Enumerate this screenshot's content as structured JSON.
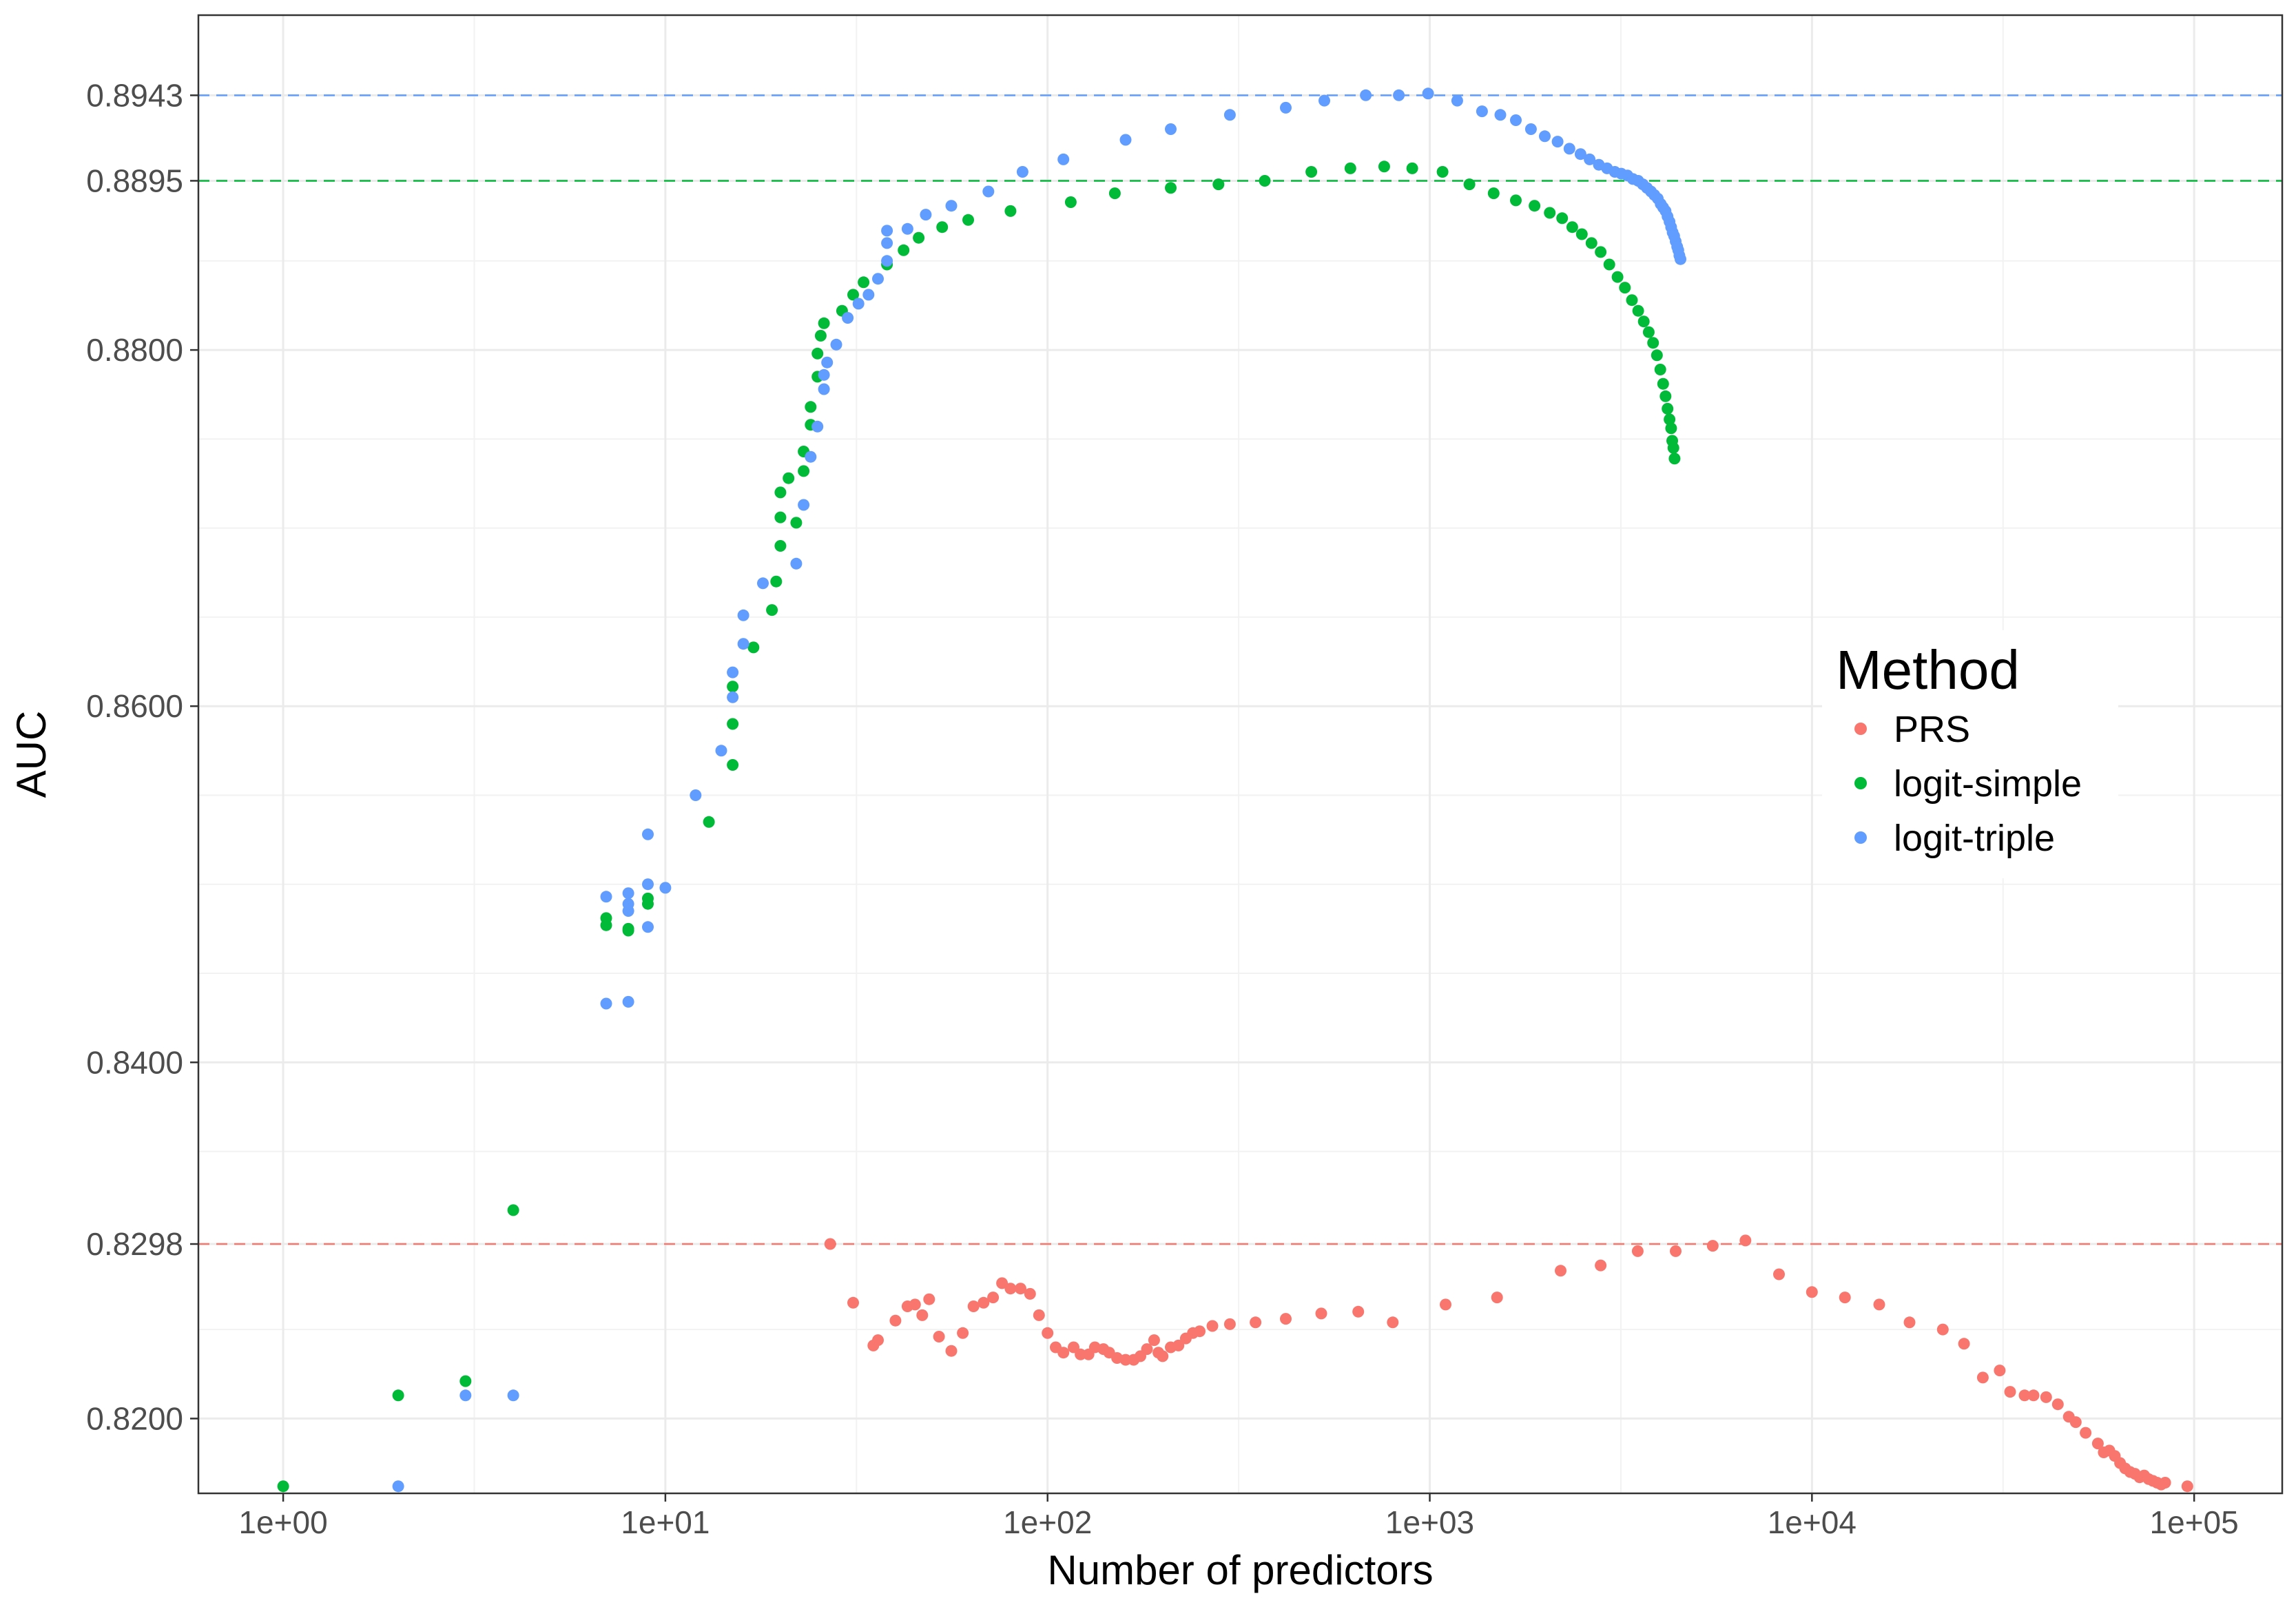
{
  "chart_data": {
    "type": "scatter",
    "title": "",
    "xlabel": "Number of predictors",
    "ylabel": "AUC",
    "x_scale": "log10",
    "x_range": [
      0.6,
      170000
    ],
    "y_range": [
      0.8158,
      0.8988
    ],
    "x_ticks": [
      1,
      10,
      100,
      1000,
      10000,
      100000
    ],
    "x_tick_labels": [
      "1e+00",
      "1e+01",
      "1e+02",
      "1e+03",
      "1e+04",
      "1e+05"
    ],
    "y_ticks": [
      0.82,
      0.8298,
      0.84,
      0.86,
      0.88,
      0.8895,
      0.8943
    ],
    "y_tick_labels": [
      "0.8200",
      "0.8298",
      "0.8400",
      "0.8600",
      "0.8800",
      "0.8895",
      "0.8943"
    ],
    "y_minor_ticks": [
      0.815,
      0.825,
      0.835,
      0.845,
      0.85,
      0.855,
      0.865,
      0.87,
      0.875,
      0.885
    ],
    "grid": true,
    "legend": {
      "title": "Method",
      "position": "right-inside"
    },
    "reference_lines": [
      {
        "series": "PRS",
        "y": 0.8298,
        "style": "dashed"
      },
      {
        "series": "logit-simple",
        "y": 0.8895,
        "style": "dashed"
      },
      {
        "series": "logit-triple",
        "y": 0.8943,
        "style": "dashed"
      }
    ],
    "series": [
      {
        "name": "PRS",
        "color": "#F8766D",
        "points": [
          [
            27,
            0.8298
          ],
          [
            31,
            0.8265
          ],
          [
            35,
            0.8241
          ],
          [
            36,
            0.8244
          ],
          [
            40,
            0.8255
          ],
          [
            43,
            0.8263
          ],
          [
            45,
            0.8264
          ],
          [
            47,
            0.8258
          ],
          [
            49,
            0.8267
          ],
          [
            52,
            0.8246
          ],
          [
            56,
            0.8238
          ],
          [
            60,
            0.8248
          ],
          [
            64,
            0.8263
          ],
          [
            68,
            0.8265
          ],
          [
            72,
            0.8268
          ],
          [
            76,
            0.8276
          ],
          [
            80,
            0.8273
          ],
          [
            85,
            0.8273
          ],
          [
            90,
            0.827
          ],
          [
            95,
            0.8258
          ],
          [
            100,
            0.8248
          ],
          [
            105,
            0.824
          ],
          [
            110,
            0.8237
          ],
          [
            117,
            0.824
          ],
          [
            122,
            0.8236
          ],
          [
            128,
            0.8236
          ],
          [
            133,
            0.824
          ],
          [
            140,
            0.8239
          ],
          [
            145,
            0.8237
          ],
          [
            152,
            0.8234
          ],
          [
            160,
            0.8233
          ],
          [
            168,
            0.8233
          ],
          [
            175,
            0.8235
          ],
          [
            182,
            0.8239
          ],
          [
            190,
            0.8244
          ],
          [
            195,
            0.8237
          ],
          [
            200,
            0.8235
          ],
          [
            210,
            0.824
          ],
          [
            220,
            0.8241
          ],
          [
            230,
            0.8245
          ],
          [
            240,
            0.8248
          ],
          [
            250,
            0.8249
          ],
          [
            270,
            0.8252
          ],
          [
            300,
            0.8253
          ],
          [
            350,
            0.8254
          ],
          [
            420,
            0.8256
          ],
          [
            520,
            0.8259
          ],
          [
            650,
            0.826
          ],
          [
            800,
            0.8254
          ],
          [
            1100,
            0.8264
          ],
          [
            1500,
            0.8268
          ],
          [
            2200,
            0.8283
          ],
          [
            2800,
            0.8286
          ],
          [
            3500,
            0.8294
          ],
          [
            4400,
            0.8294
          ],
          [
            5500,
            0.8297
          ],
          [
            6700,
            0.83
          ],
          [
            8200,
            0.8281
          ],
          [
            10000,
            0.8271
          ],
          [
            12200,
            0.8268
          ],
          [
            15000,
            0.8264
          ],
          [
            18000,
            0.8254
          ],
          [
            22000,
            0.825
          ],
          [
            25000,
            0.8242
          ],
          [
            28000,
            0.8223
          ],
          [
            31000,
            0.8227
          ],
          [
            33000,
            0.8215
          ],
          [
            36000,
            0.8213
          ],
          [
            38000,
            0.8213
          ],
          [
            41000,
            0.8212
          ],
          [
            44000,
            0.8208
          ],
          [
            47000,
            0.8201
          ],
          [
            49000,
            0.8198
          ],
          [
            52000,
            0.8192
          ],
          [
            56000,
            0.8186
          ],
          [
            58000,
            0.8181
          ],
          [
            60000,
            0.8182
          ],
          [
            62000,
            0.8179
          ],
          [
            64000,
            0.8175
          ],
          [
            66000,
            0.8172
          ],
          [
            68000,
            0.817
          ],
          [
            70000,
            0.8169
          ],
          [
            72000,
            0.8167
          ],
          [
            74000,
            0.8168
          ],
          [
            76000,
            0.8166
          ],
          [
            78000,
            0.8165
          ],
          [
            80000,
            0.8164
          ],
          [
            82000,
            0.8163
          ],
          [
            84000,
            0.8164
          ],
          [
            96000,
            0.8162
          ]
        ]
      },
      {
        "name": "logit-simple",
        "color": "#00BA38",
        "points": [
          [
            1,
            0.8162
          ],
          [
            2,
            0.8213
          ],
          [
            3,
            0.8221
          ],
          [
            4,
            0.8317
          ],
          [
            7,
            0.8477
          ],
          [
            7,
            0.8481
          ],
          [
            8,
            0.8474
          ],
          [
            8,
            0.8475
          ],
          [
            9,
            0.8489
          ],
          [
            9,
            0.8492
          ],
          [
            13,
            0.8535
          ],
          [
            15,
            0.8567
          ],
          [
            15,
            0.859
          ],
          [
            15,
            0.8611
          ],
          [
            17,
            0.8633
          ],
          [
            19,
            0.8654
          ],
          [
            19.5,
            0.867
          ],
          [
            20,
            0.869
          ],
          [
            20,
            0.8706
          ],
          [
            20,
            0.872
          ],
          [
            21,
            0.8728
          ],
          [
            22,
            0.8703
          ],
          [
            23,
            0.8732
          ],
          [
            23,
            0.8743
          ],
          [
            24,
            0.8758
          ],
          [
            24,
            0.8768
          ],
          [
            25,
            0.8785
          ],
          [
            25,
            0.8798
          ],
          [
            25.5,
            0.8808
          ],
          [
            26,
            0.8815
          ],
          [
            29,
            0.8822
          ],
          [
            31,
            0.8831
          ],
          [
            33,
            0.8838
          ],
          [
            38,
            0.8848
          ],
          [
            42,
            0.8856
          ],
          [
            46,
            0.8863
          ],
          [
            53,
            0.8869
          ],
          [
            62,
            0.8873
          ],
          [
            80,
            0.8878
          ],
          [
            115,
            0.8883
          ],
          [
            150,
            0.8888
          ],
          [
            210,
            0.8891
          ],
          [
            280,
            0.8893
          ],
          [
            370,
            0.8895
          ],
          [
            490,
            0.89
          ],
          [
            620,
            0.8902
          ],
          [
            760,
            0.8903
          ],
          [
            900,
            0.8902
          ],
          [
            1080,
            0.89
          ],
          [
            1270,
            0.8893
          ],
          [
            1470,
            0.8888
          ],
          [
            1680,
            0.8884
          ],
          [
            1880,
            0.8881
          ],
          [
            2060,
            0.8877
          ],
          [
            2220,
            0.8874
          ],
          [
            2360,
            0.8869
          ],
          [
            2500,
            0.8865
          ],
          [
            2650,
            0.886
          ],
          [
            2800,
            0.8855
          ],
          [
            2950,
            0.8848
          ],
          [
            3100,
            0.8841
          ],
          [
            3240,
            0.8835
          ],
          [
            3380,
            0.8828
          ],
          [
            3510,
            0.8822
          ],
          [
            3630,
            0.8816
          ],
          [
            3740,
            0.881
          ],
          [
            3840,
            0.8804
          ],
          [
            3930,
            0.8797
          ],
          [
            4010,
            0.8789
          ],
          [
            4080,
            0.8781
          ],
          [
            4140,
            0.8774
          ],
          [
            4190,
            0.8767
          ],
          [
            4240,
            0.8761
          ],
          [
            4280,
            0.8756
          ],
          [
            4310,
            0.8749
          ],
          [
            4340,
            0.8745
          ],
          [
            4370,
            0.8739
          ]
        ]
      },
      {
        "name": "logit-triple",
        "color": "#619CFF",
        "points": [
          [
            2,
            0.8162
          ],
          [
            3,
            0.8213
          ],
          [
            4,
            0.8213
          ],
          [
            7,
            0.8433
          ],
          [
            7,
            0.8493
          ],
          [
            8,
            0.8434
          ],
          [
            8,
            0.8485
          ],
          [
            8,
            0.8489
          ],
          [
            8,
            0.8495
          ],
          [
            9,
            0.8476
          ],
          [
            9,
            0.85
          ],
          [
            9,
            0.8528
          ],
          [
            10,
            0.8498
          ],
          [
            12,
            0.855
          ],
          [
            14,
            0.8575
          ],
          [
            15,
            0.8605
          ],
          [
            15,
            0.8619
          ],
          [
            16,
            0.8635
          ],
          [
            16,
            0.8651
          ],
          [
            18,
            0.8669
          ],
          [
            22,
            0.868
          ],
          [
            23,
            0.8713
          ],
          [
            24,
            0.874
          ],
          [
            25,
            0.8757
          ],
          [
            26,
            0.8778
          ],
          [
            26,
            0.8786
          ],
          [
            26.5,
            0.8793
          ],
          [
            28,
            0.8803
          ],
          [
            30,
            0.8818
          ],
          [
            32,
            0.8826
          ],
          [
            34,
            0.8831
          ],
          [
            36,
            0.884
          ],
          [
            38,
            0.885
          ],
          [
            38,
            0.886
          ],
          [
            38,
            0.8867
          ],
          [
            43,
            0.8868
          ],
          [
            48,
            0.8876
          ],
          [
            56,
            0.8881
          ],
          [
            70,
            0.8889
          ],
          [
            86,
            0.89
          ],
          [
            110,
            0.8907
          ],
          [
            160,
            0.8918
          ],
          [
            210,
            0.8924
          ],
          [
            300,
            0.8932
          ],
          [
            420,
            0.8936
          ],
          [
            530,
            0.894
          ],
          [
            680,
            0.8943
          ],
          [
            830,
            0.8943
          ],
          [
            990,
            0.8944
          ],
          [
            1180,
            0.894
          ],
          [
            1370,
            0.8934
          ],
          [
            1530,
            0.8932
          ],
          [
            1680,
            0.8929
          ],
          [
            1840,
            0.8924
          ],
          [
            2000,
            0.892
          ],
          [
            2160,
            0.8917
          ],
          [
            2320,
            0.8913
          ],
          [
            2480,
            0.891
          ],
          [
            2620,
            0.8907
          ],
          [
            2770,
            0.8904
          ],
          [
            2910,
            0.8902
          ],
          [
            3050,
            0.89
          ],
          [
            3170,
            0.8899
          ],
          [
            3290,
            0.8898
          ],
          [
            3400,
            0.8896
          ],
          [
            3510,
            0.8895
          ],
          [
            3610,
            0.8893
          ],
          [
            3700,
            0.8891
          ],
          [
            3790,
            0.8889
          ],
          [
            3870,
            0.8887
          ],
          [
            3950,
            0.8885
          ],
          [
            4020,
            0.8882
          ],
          [
            4080,
            0.888
          ],
          [
            4140,
            0.8878
          ],
          [
            4190,
            0.8875
          ],
          [
            4240,
            0.8872
          ],
          [
            4280,
            0.8869
          ],
          [
            4320,
            0.8866
          ],
          [
            4360,
            0.8864
          ],
          [
            4400,
            0.8861
          ],
          [
            4440,
            0.8858
          ],
          [
            4470,
            0.8856
          ],
          [
            4500,
            0.8853
          ],
          [
            4530,
            0.8851
          ]
        ]
      }
    ]
  }
}
